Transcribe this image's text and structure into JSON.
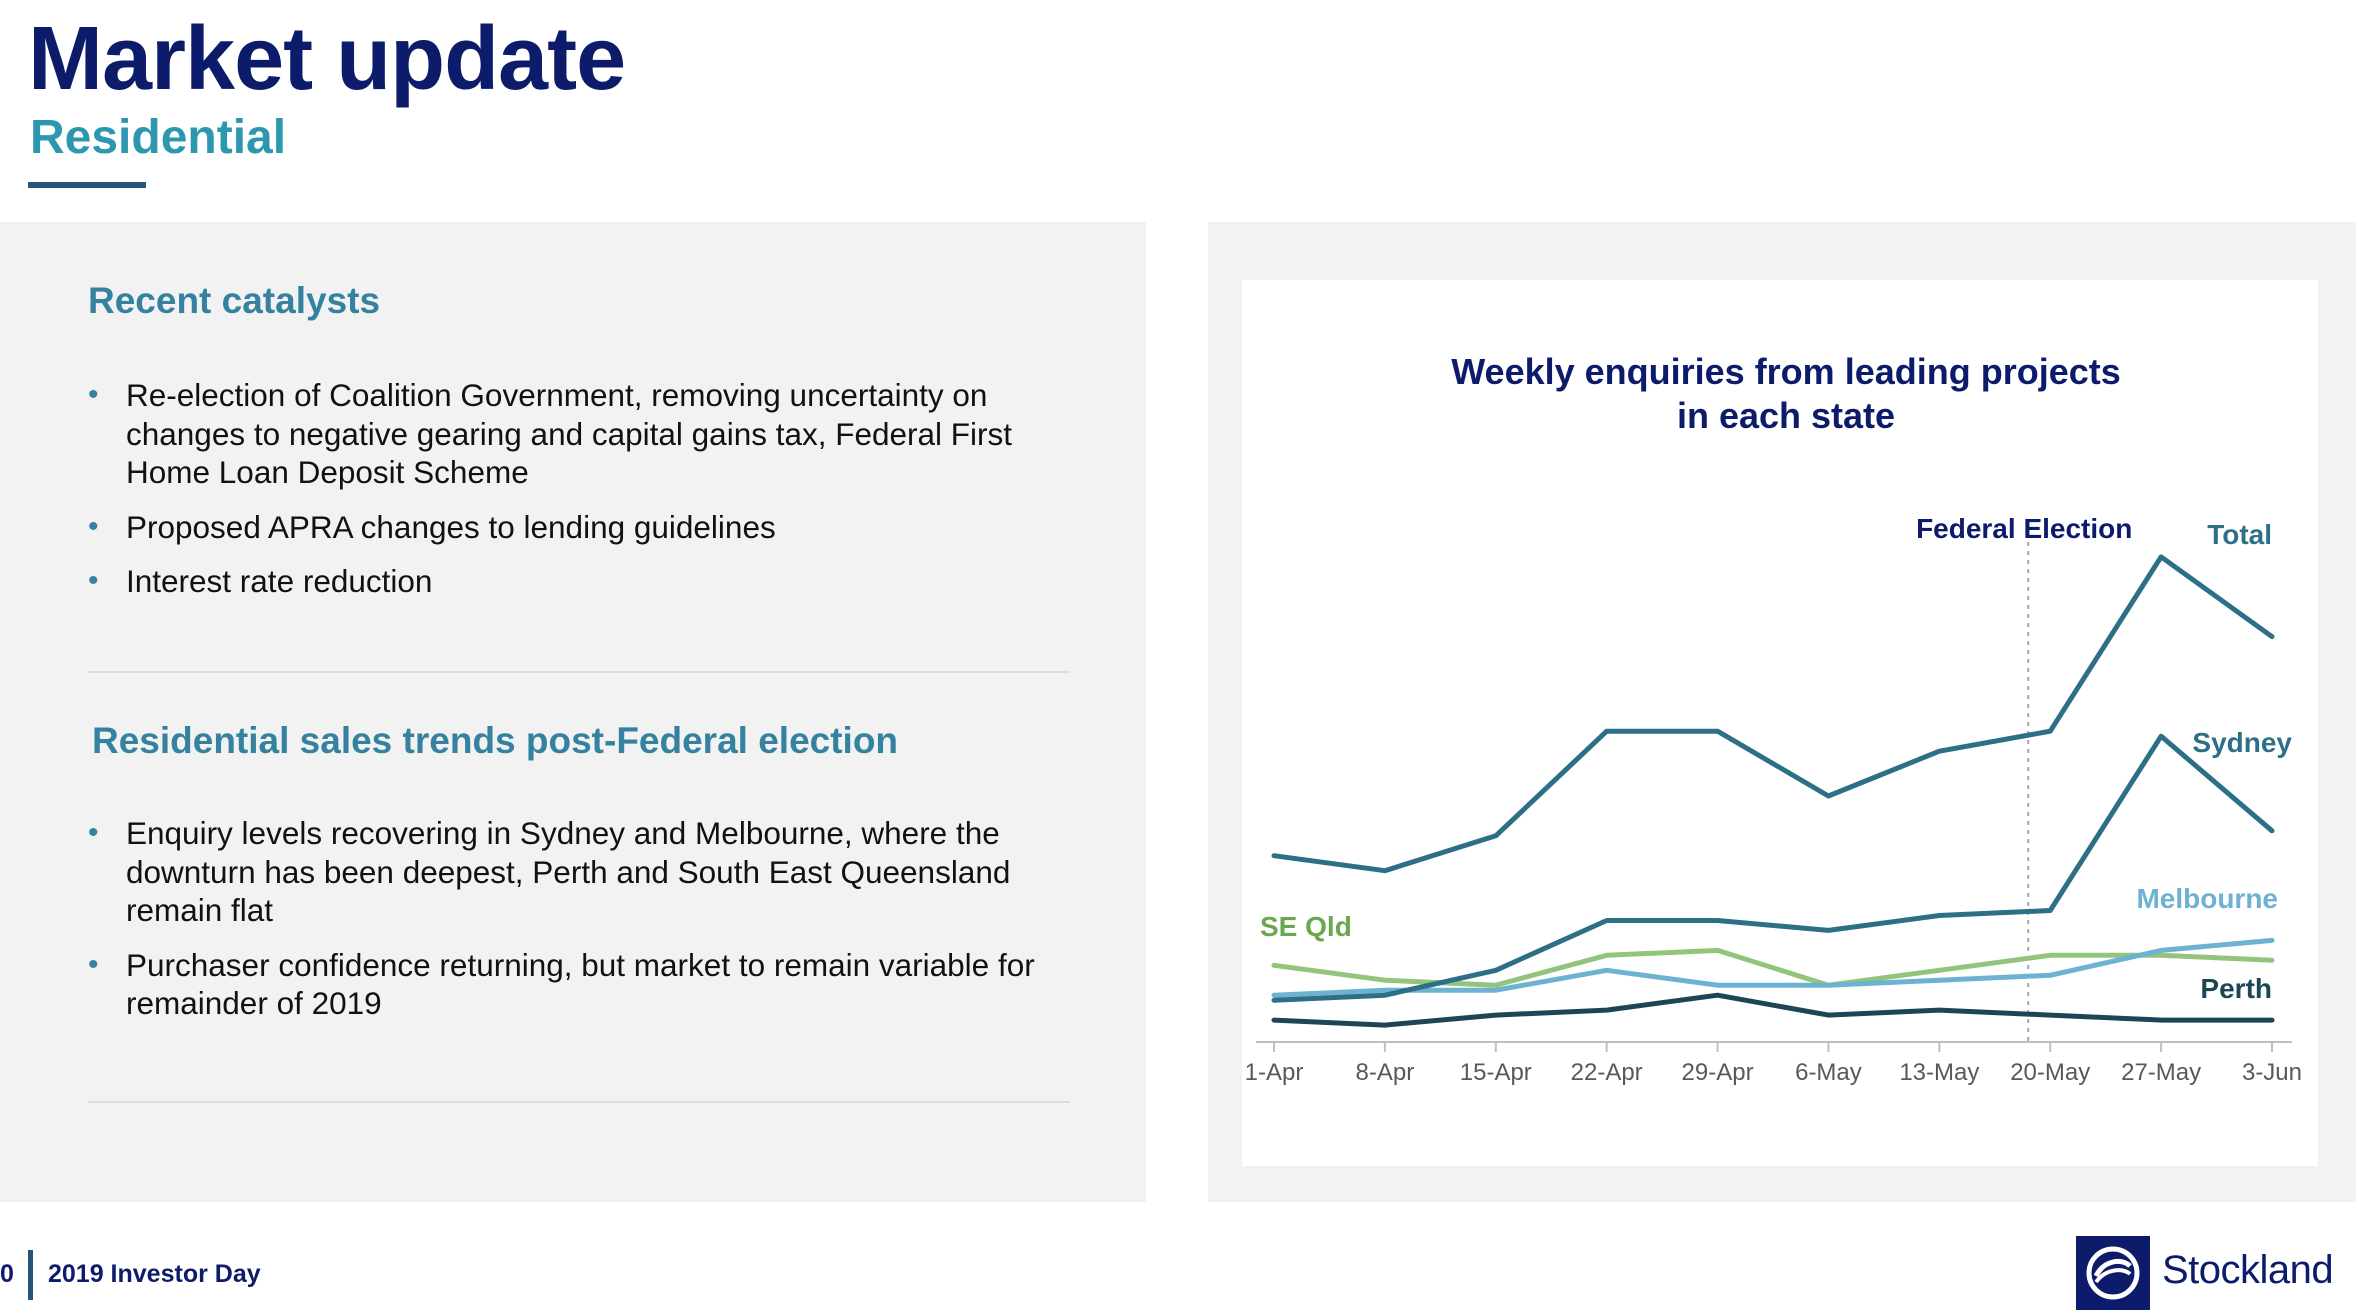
{
  "header": {
    "title": "Market update",
    "subtitle": "Residential"
  },
  "catalysts": {
    "heading": "Recent catalysts",
    "items": [
      "Re-election of Coalition Government, removing uncertainty on changes to negative gearing and capital gains tax, Federal First Home Loan Deposit Scheme",
      "Proposed APRA changes to lending guidelines",
      "Interest rate reduction"
    ]
  },
  "trends": {
    "heading": "Residential sales trends post-Federal election",
    "items": [
      "Enquiry levels recovering in Sydney and Melbourne, where the downturn has been deepest, Perth and South East Queensland remain flat",
      "Purchaser confidence returning, but market to remain variable for remainder of 2019"
    ]
  },
  "footer": {
    "page_number": "0",
    "event": "2019 Investor Day",
    "brand": "Stockland"
  },
  "colors": {
    "navy": "#0d1b6b",
    "teal": "#34829f",
    "total": "#2c6f86",
    "sydney": "#2c6f86",
    "melbourne": "#6db3d1",
    "seqld": "#93c47d",
    "perth": "#1c4654"
  },
  "chart_data": {
    "type": "line",
    "title": "Weekly enquiries from leading projects in each state",
    "categories": [
      "1-Apr",
      "8-Apr",
      "15-Apr",
      "22-Apr",
      "29-Apr",
      "6-May",
      "13-May",
      "20-May",
      "27-May",
      "3-Jun"
    ],
    "annotation": "Federal Election",
    "annotation_at": "20-May",
    "y_axis_visible": false,
    "ylim": [
      0,
      100
    ],
    "grid": false,
    "series": [
      {
        "name": "Total",
        "color": "#2c6f86",
        "values": [
          37,
          34,
          41,
          62,
          62,
          49,
          58,
          62,
          97,
          81
        ]
      },
      {
        "name": "Sydney",
        "color": "#2c6f86",
        "values": [
          8,
          9,
          14,
          24,
          24,
          22,
          25,
          26,
          61,
          42
        ]
      },
      {
        "name": "Melbourne",
        "color": "#6db3d1",
        "values": [
          9,
          10,
          10,
          14,
          11,
          11,
          12,
          13,
          18,
          20
        ]
      },
      {
        "name": "SE Qld",
        "color": "#93c47d",
        "values": [
          15,
          12,
          11,
          17,
          18,
          11,
          14,
          17,
          17,
          16
        ]
      },
      {
        "name": "Perth",
        "color": "#1c4654",
        "values": [
          4,
          3,
          5,
          6,
          9,
          5,
          6,
          5,
          4,
          4
        ]
      }
    ]
  }
}
